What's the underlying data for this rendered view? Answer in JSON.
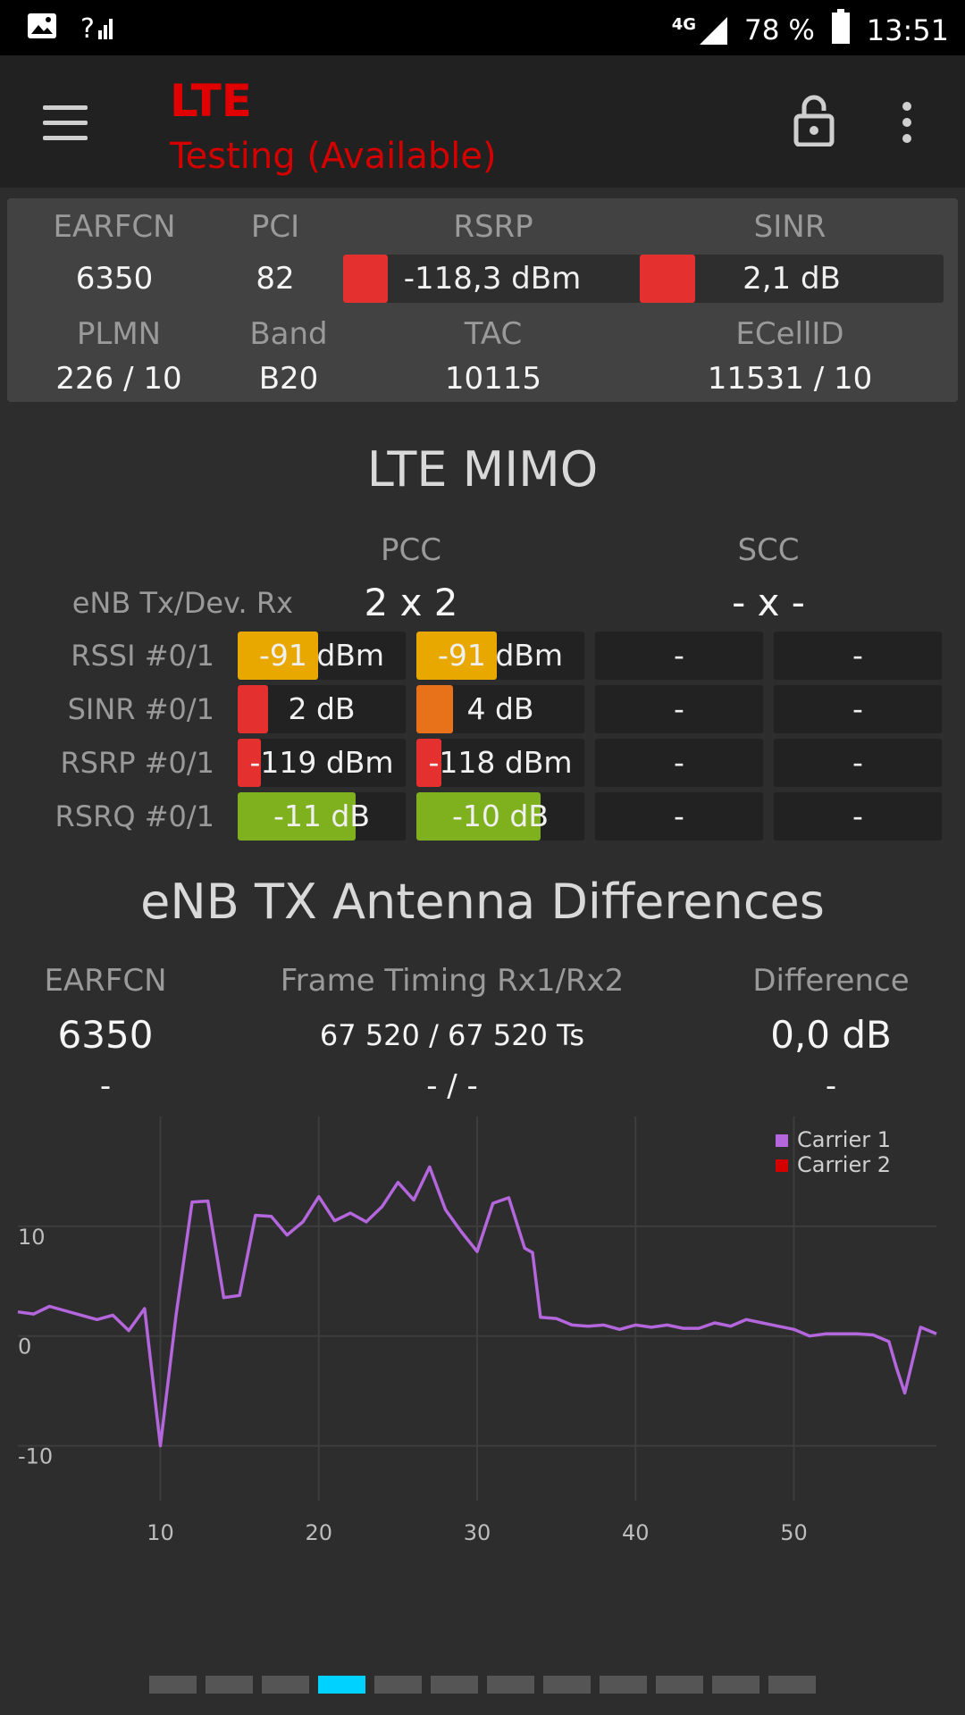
{
  "status_bar": {
    "icons_left": [
      "gallery-icon",
      "signal-unknown-icon"
    ],
    "network": "4G",
    "battery": "78 %",
    "time": "13:51"
  },
  "app_bar": {
    "title": "LTE",
    "subtitle": "Testing (Available)",
    "icons": [
      "menu-icon",
      "lock-open-icon",
      "more-vert-icon"
    ],
    "title_color": "#e00000"
  },
  "summary": {
    "earfcn_label": "EARFCN",
    "earfcn": "6350",
    "pci_label": "PCI",
    "pci": "82",
    "rsrp_label": "RSRP",
    "rsrp": "-118,3 dBm",
    "sinr_label": "SINR",
    "sinr": "2,1 dB",
    "plmn_label": "PLMN",
    "plmn": "226 / 10",
    "band_label": "Band",
    "band": "B20",
    "tac_label": "TAC",
    "tac": "10115",
    "ecellid_label": "ECellID",
    "ecellid": "11531 / 10",
    "rsrp_color": "#e53030",
    "sinr_color": "#e53030"
  },
  "mimo": {
    "title": "LTE MIMO",
    "pcc_label": "PCC",
    "scc_label": "SCC",
    "enb_label": "eNB Tx/Dev. Rx",
    "pcc_config": "2 x 2",
    "scc_config": "- x -",
    "rows": [
      {
        "label": "RSSI #0/1",
        "cells": [
          {
            "text": "-91 dBm",
            "level": 0.48,
            "color": "#e8a800"
          },
          {
            "text": "-91 dBm",
            "level": 0.48,
            "color": "#e8a800"
          },
          {
            "text": "-",
            "level": 0,
            "color": ""
          },
          {
            "text": "-",
            "level": 0,
            "color": ""
          }
        ]
      },
      {
        "label": "SINR #0/1",
        "cells": [
          {
            "text": "2 dB",
            "level": 0.18,
            "color": "#e53030"
          },
          {
            "text": "4 dB",
            "level": 0.22,
            "color": "#e8721a"
          },
          {
            "text": "-",
            "level": 0,
            "color": ""
          },
          {
            "text": "-",
            "level": 0,
            "color": ""
          }
        ]
      },
      {
        "label": "RSRP #0/1",
        "cells": [
          {
            "text": "-119 dBm",
            "level": 0.14,
            "color": "#e53030"
          },
          {
            "text": "-118 dBm",
            "level": 0.15,
            "color": "#e53030"
          },
          {
            "text": "-",
            "level": 0,
            "color": ""
          },
          {
            "text": "-",
            "level": 0,
            "color": ""
          }
        ]
      },
      {
        "label": "RSRQ #0/1",
        "cells": [
          {
            "text": "-11 dB",
            "level": 0.7,
            "color": "#7fb01e"
          },
          {
            "text": "-10 dB",
            "level": 0.74,
            "color": "#7fb01e"
          },
          {
            "text": "-",
            "level": 0,
            "color": ""
          },
          {
            "text": "-",
            "level": 0,
            "color": ""
          }
        ]
      }
    ]
  },
  "antenna": {
    "title": "eNB TX Antenna Differences",
    "earfcn_label": "EARFCN",
    "frame_label": "Frame Timing Rx1/Rx2",
    "diff_label": "Difference",
    "earfcn": "6350",
    "frame": "67 520 / 67 520 Ts",
    "diff": "0,0 dB",
    "earfcn2": "-",
    "frame2": "- / -",
    "diff2": "-"
  },
  "chart_data": {
    "type": "line",
    "xlim": [
      1,
      59
    ],
    "ylim": [
      -15,
      20
    ],
    "x_ticks": [
      10,
      20,
      30,
      40,
      50
    ],
    "y_ticks": [
      -10,
      0,
      10
    ],
    "grid": true,
    "legend_position": "top-right",
    "series": [
      {
        "name": "Carrier 1",
        "color": "#b466dc",
        "x": [
          1,
          2,
          3,
          4,
          5,
          6,
          7,
          8,
          9,
          10,
          11,
          12,
          13,
          14,
          15,
          16,
          17,
          18,
          19,
          20,
          21,
          22,
          23,
          24,
          25,
          26,
          27,
          28,
          29,
          30,
          31,
          32,
          33,
          33.5,
          34,
          35,
          36,
          37,
          38,
          39,
          40,
          41,
          42,
          43,
          44,
          45,
          46,
          47,
          48,
          49,
          50,
          51,
          52,
          53,
          54,
          55,
          56,
          56.5,
          57,
          58,
          59
        ],
        "y": [
          2.2,
          2.0,
          2.7,
          2.3,
          1.9,
          1.5,
          1.9,
          0.5,
          2.5,
          -10,
          2,
          12.2,
          12.3,
          3.5,
          3.7,
          11,
          10.9,
          9.2,
          10.4,
          12.7,
          10.5,
          11.2,
          10.4,
          11.8,
          14,
          12.4,
          15.4,
          11.5,
          9.5,
          7.7,
          12.1,
          12.6,
          8,
          7.6,
          1.7,
          1.6,
          1.0,
          0.9,
          1.0,
          0.6,
          1.0,
          0.8,
          1.0,
          0.7,
          0.7,
          1.2,
          0.9,
          1.5,
          1.2,
          0.9,
          0.6,
          0,
          0.2,
          0.2,
          0.2,
          0.1,
          -0.5,
          -3,
          -5.2,
          0.8,
          0.2
        ]
      },
      {
        "name": "Carrier 2",
        "color": "#d40000",
        "x": [],
        "y": []
      }
    ]
  },
  "pager": {
    "count": 12,
    "active_index": 3
  }
}
